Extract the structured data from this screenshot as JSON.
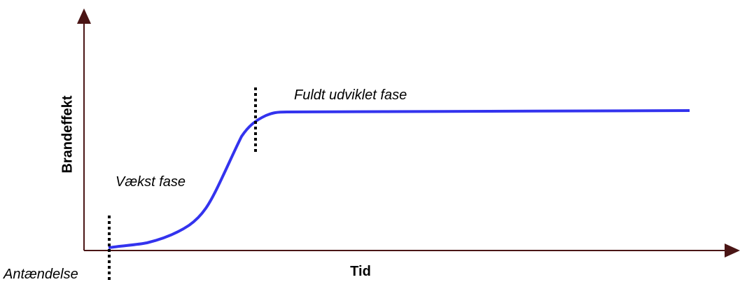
{
  "axes": {
    "y_label": "Brandeffekt",
    "x_label": "Tid"
  },
  "annotations": {
    "growth": "Vækst fase",
    "full": "Fuldt udviklet fase",
    "ignition": "Antændelse"
  }
}
